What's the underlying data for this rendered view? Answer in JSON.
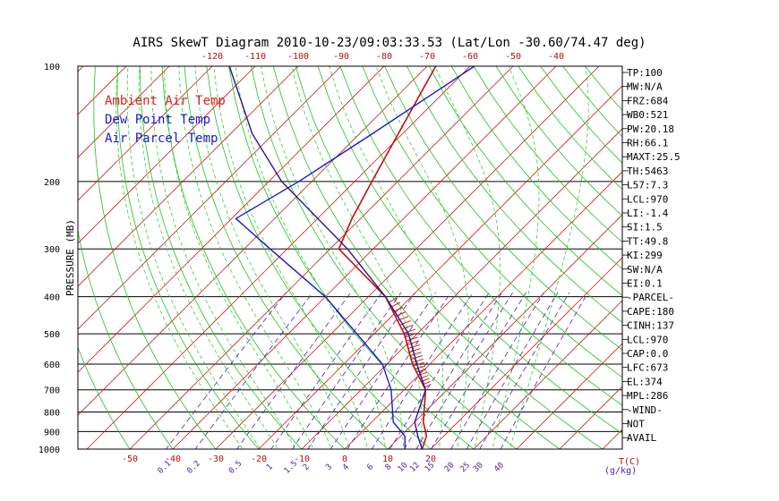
{
  "chart_data": {
    "type": "line",
    "title": "AIRS SkewT Diagram 2010-10-23/09:03:33.53 (Lat/Lon -30.60/74.47 deg)",
    "ylabel": "PRESSURE (MB)",
    "xlabel_bottom": "T(C)",
    "mixing_ratio_unit": "(g/kg)",
    "pressure_ticks": [
      100,
      200,
      300,
      400,
      500,
      600,
      700,
      800,
      900,
      1000
    ],
    "pressure_ticks_labels": [
      "100",
      "200",
      "300",
      "400",
      "500",
      "600",
      "700",
      "800",
      "900",
      "1000"
    ],
    "top_temp_ticks": [
      "-120",
      "-110",
      "-100",
      "-90",
      "-80",
      "-70",
      "-60",
      "-50",
      "-40"
    ],
    "bottom_temp_ticks": [
      "-50",
      "-40",
      "-30",
      "-20",
      "-10",
      "0",
      "10",
      "20"
    ],
    "mixing_ratio_ticks": [
      "0.1",
      "0.2",
      "0.5",
      "1",
      "1.5",
      "2",
      "3",
      "4",
      "6",
      "8",
      "10",
      "12",
      "15",
      "20",
      "25",
      "30",
      "40"
    ],
    "legend": [
      {
        "name": "Ambient Air Temp",
        "color": "#e02020"
      },
      {
        "name": "Dew Point Temp",
        "color": "#1a1acc"
      },
      {
        "name": "Air Parcel Temp",
        "color": "#1a1acc"
      }
    ],
    "series": [
      {
        "name": "Ambient Air Temp",
        "color": "#c01010",
        "points": [
          [
            1000,
            18
          ],
          [
            925,
            16
          ],
          [
            850,
            12
          ],
          [
            700,
            5
          ],
          [
            600,
            -4
          ],
          [
            500,
            -13
          ],
          [
            400,
            -26
          ],
          [
            300,
            -48
          ],
          [
            250,
            -52
          ],
          [
            200,
            -56
          ],
          [
            150,
            -61
          ],
          [
            100,
            -68
          ]
        ]
      },
      {
        "name": "Dew Point Temp",
        "color": "#1a1acc",
        "points": [
          [
            1000,
            14
          ],
          [
            925,
            11
          ],
          [
            850,
            5
          ],
          [
            700,
            -3
          ],
          [
            600,
            -11
          ],
          [
            500,
            -24
          ],
          [
            400,
            -40
          ],
          [
            300,
            -64
          ],
          [
            250,
            -79
          ],
          [
            200,
            -73
          ],
          [
            150,
            -67
          ],
          [
            100,
            -59
          ]
        ]
      },
      {
        "name": "Air Parcel Temp",
        "color": "#301090",
        "points": [
          [
            1000,
            18
          ],
          [
            925,
            14
          ],
          [
            850,
            10
          ],
          [
            700,
            5
          ],
          [
            600,
            -3
          ],
          [
            500,
            -12
          ],
          [
            400,
            -26
          ],
          [
            300,
            -46
          ],
          [
            200,
            -77
          ],
          [
            150,
            -95
          ],
          [
            100,
            -116
          ]
        ]
      }
    ],
    "stats": [
      "TP:100",
      "MW:N/A",
      "FRZ:684",
      "WB0:521",
      "PW:20.18",
      "RH:66.1",
      "MAXT:25.5",
      "TH:5463",
      "L57:7.3",
      "LCL:970",
      "LI:-1.4",
      "SI:1.5",
      "TT:49.8",
      "KI:299",
      "SW:N/A",
      "EI:0.1",
      "-PARCEL-",
      "CAPE:180",
      "CINH:137",
      "LCL:970",
      "CAP:0.0",
      "LFC:673",
      "EL:374",
      "MPL:286",
      "-WIND-",
      "NOT",
      "AVAIL"
    ],
    "colors": {
      "isotherm": "#d01818",
      "dry_adiabat": "#20c020",
      "moist_adiabat": "#30d030",
      "mixing_ratio": "#5520a0",
      "axis_label": "#b01010"
    }
  }
}
